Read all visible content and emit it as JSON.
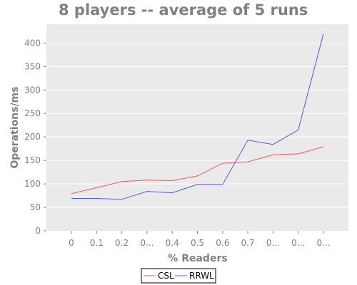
{
  "chart_data": {
    "type": "line",
    "title": "8 players -- average of 5 runs",
    "xlabel": "% Readers",
    "ylabel": "Operations/ms",
    "categories": [
      "0",
      "0.1",
      "0.2",
      "0...",
      "0.4",
      "0.5",
      "0.6",
      "0.7",
      "0...",
      "0...",
      "0..."
    ],
    "ylim": [
      0,
      440
    ],
    "yticks": [
      0,
      50,
      100,
      150,
      200,
      250,
      300,
      350,
      400
    ],
    "grid": "horizontal",
    "legend_position": "bottom-center",
    "series": [
      {
        "name": "CSL",
        "color": "#ff5555",
        "values": [
          79,
          92,
          105,
          108,
          107,
          117,
          144,
          147,
          162,
          164,
          179
        ]
      },
      {
        "name": "RRWL",
        "color": "#5555ff",
        "values": [
          69,
          69,
          67,
          84,
          81,
          99,
          99,
          193,
          184,
          215,
          420
        ]
      }
    ]
  },
  "colors": {
    "plot_background": "#eaeaea",
    "gridline": "#ffffff",
    "text": "#808080",
    "axis": "#808080"
  }
}
